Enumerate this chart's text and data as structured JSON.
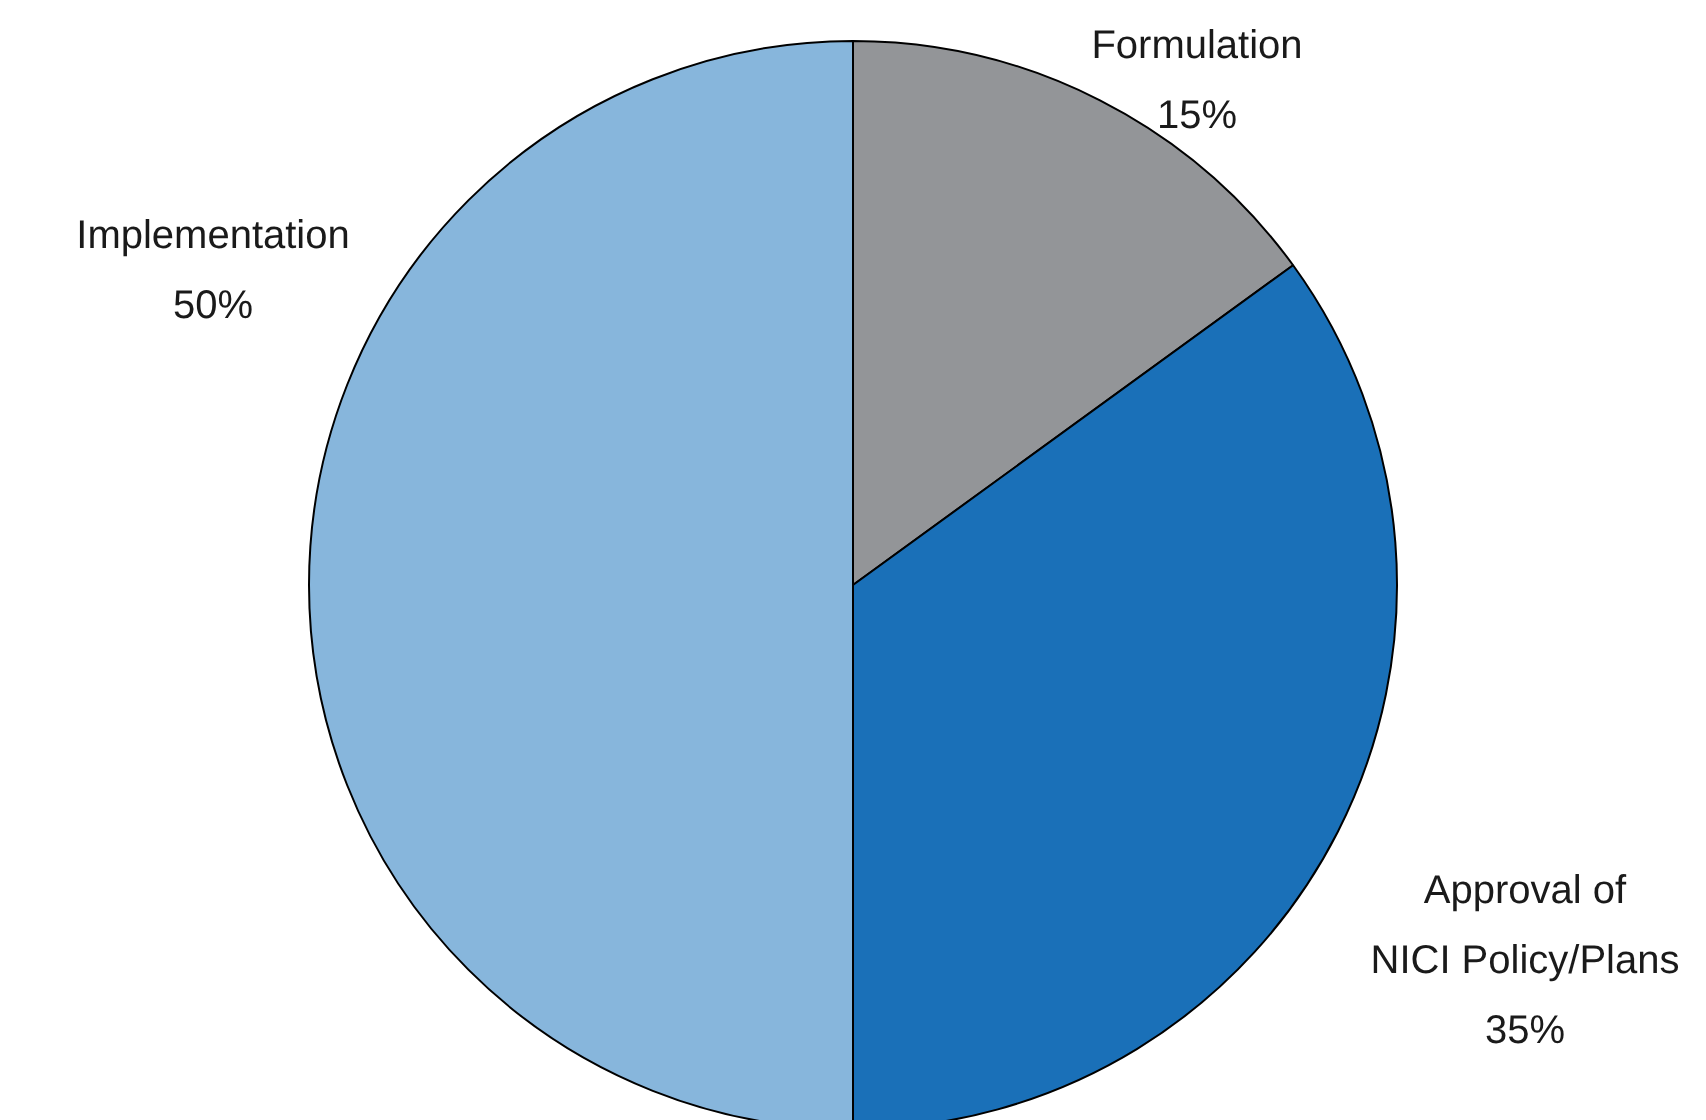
{
  "chart_data": {
    "type": "pie",
    "categories": [
      "Formulation",
      "Approval of\nNICI Policy/Plans",
      "Implementation"
    ],
    "values": [
      15,
      35,
      50
    ],
    "value_labels": [
      "15%",
      "35%",
      "50%"
    ],
    "colors": [
      "#939598",
      "#1a70b8",
      "#87b6dc"
    ]
  }
}
